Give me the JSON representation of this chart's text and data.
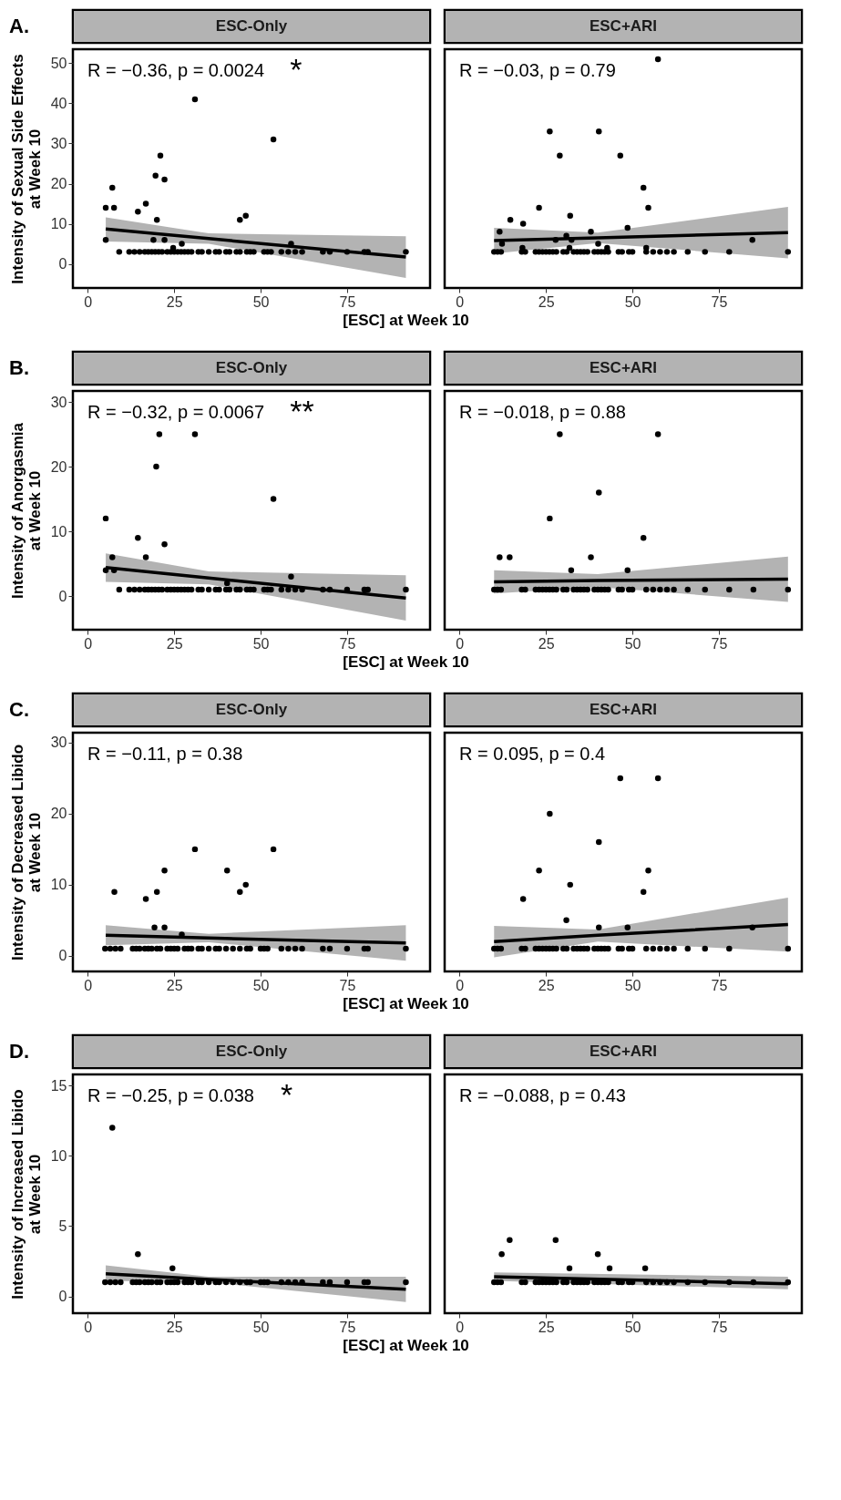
{
  "chart_data": [
    {
      "type": "scatter",
      "title": "ESC-Only",
      "xlabel": "[ESC] at Week 10",
      "ylabel": "Intensity of Sexual Side Effects\nat Week 10",
      "xlim": [
        -4.3,
        99
      ],
      "xticks": [
        0,
        25,
        50,
        75
      ],
      "ylim": [
        -6,
        53.5
      ],
      "yticks": [
        0,
        10,
        20,
        30,
        40,
        50
      ],
      "grid": false,
      "marker": "circle",
      "annotations": [
        "A.",
        "R = −0.36, p = 0.0024",
        "*"
      ],
      "series": [
        {
          "type": "scatter",
          "color": "#000000",
          "x": [
            5.2,
            5.2,
            7.1,
            7.6,
            9.1,
            14.5,
            16.8,
            20,
            19.6,
            21,
            22.2,
            19,
            22.2,
            31,
            27.2,
            44,
            45.7,
            53.7,
            58.8,
            24.7,
            12,
            13.5,
            15,
            16.5,
            17.5,
            18.5,
            19.5,
            20.5,
            21.5,
            23,
            24,
            25,
            26,
            27,
            28,
            29,
            30,
            32,
            33,
            35,
            37,
            38,
            40,
            41,
            43,
            44,
            46,
            47,
            48,
            51,
            52,
            53,
            56,
            58,
            60,
            62,
            68,
            70,
            75,
            80,
            81,
            92
          ],
          "values": [
            14,
            6,
            19,
            14,
            3,
            13,
            15,
            11,
            22,
            27,
            21,
            6,
            6,
            41,
            5,
            11,
            12,
            31,
            5,
            4,
            3,
            3,
            3,
            3,
            3,
            3,
            3,
            3,
            3,
            3,
            3,
            3,
            3,
            3,
            3,
            3,
            3,
            3,
            3,
            3,
            3,
            3,
            3,
            3,
            3,
            3,
            3,
            3,
            3,
            3,
            3,
            3,
            3,
            3,
            3,
            3,
            3,
            3,
            3,
            3,
            3,
            3
          ]
        },
        {
          "type": "line",
          "marker": "none",
          "color": "#000000",
          "x": [
            5.2,
            35,
            92
          ],
          "values": [
            8.7,
            6.3,
            1.7
          ],
          "lower": [
            5.6,
            5.0,
            -3.5
          ],
          "upper": [
            11.6,
            7.6,
            6.9
          ]
        }
      ]
    },
    {
      "type": "scatter",
      "title": "ESC+ARI",
      "xlim": [
        -4.3,
        99
      ],
      "xticks": [
        0,
        25,
        50,
        75
      ],
      "ylim": [
        -6,
        53.5
      ],
      "yticks": [
        0,
        10,
        20,
        30,
        40,
        50
      ],
      "grid": false,
      "marker": "circle",
      "tick_labels": "x",
      "annotations": [
        "R = −0.03, p = 0.79"
      ],
      "series": [
        {
          "type": "scatter",
          "color": "#000000",
          "x": [
            57.4,
            26.1,
            40.3,
            29,
            46.5,
            53.2,
            54.6,
            23,
            32,
            14.7,
            18.4,
            11.6,
            38,
            48.6,
            30.9,
            27.8,
            32.4,
            54,
            84.7,
            12.3,
            40.1,
            18.2,
            42.7,
            31.8,
            10,
            11,
            12,
            18,
            19,
            22,
            23,
            24,
            25,
            26,
            27,
            28,
            30,
            31,
            33,
            34,
            35,
            36,
            37,
            39,
            40,
            41,
            42,
            43,
            46,
            47,
            49,
            50,
            54,
            56,
            58,
            60,
            62,
            66,
            71,
            78,
            95
          ],
          "values": [
            51,
            33,
            33,
            27,
            27,
            19,
            14,
            14,
            12,
            11,
            10,
            8,
            8,
            9,
            7,
            6,
            6,
            4,
            6,
            5,
            5,
            4,
            4,
            4,
            3,
            3,
            3,
            3,
            3,
            3,
            3,
            3,
            3,
            3,
            3,
            3,
            3,
            3,
            3,
            3,
            3,
            3,
            3,
            3,
            3,
            3,
            3,
            3,
            3,
            3,
            3,
            3,
            3,
            3,
            3,
            3,
            3,
            3,
            3,
            3,
            3
          ]
        },
        {
          "type": "line",
          "marker": "none",
          "color": "#000000",
          "x": [
            10,
            40,
            95
          ],
          "values": [
            5.8,
            6.5,
            7.8
          ],
          "lower": [
            2.6,
            5.2,
            1.4
          ],
          "upper": [
            9.0,
            7.8,
            14.2
          ]
        }
      ]
    },
    {
      "type": "scatter",
      "title": "ESC-Only",
      "xlabel": "[ESC] at Week 10",
      "ylabel": "Intensity of Anorgasmia\nat Week 10",
      "xlim": [
        -4.3,
        99
      ],
      "xticks": [
        0,
        25,
        50,
        75
      ],
      "ylim": [
        -5.2,
        31.7
      ],
      "yticks": [
        0,
        10,
        20,
        30
      ],
      "grid": false,
      "marker": "circle",
      "annotations": [
        "B.",
        "R = −0.32, p = 0.0067",
        "**"
      ],
      "series": [
        {
          "type": "scatter",
          "color": "#000000",
          "x": [
            5.2,
            5.2,
            7.1,
            7.6,
            9.1,
            14.5,
            16.8,
            19.8,
            20.7,
            31,
            22.2,
            53.7,
            58.8,
            40.3,
            12,
            13.5,
            15,
            16.5,
            17.5,
            18.5,
            19.5,
            20.5,
            21.5,
            23,
            24,
            25,
            26,
            27,
            28,
            29,
            30,
            32,
            33,
            35,
            37,
            38,
            40,
            41,
            43,
            44,
            46,
            47,
            48,
            51,
            52,
            53,
            56,
            58,
            60,
            62,
            68,
            70,
            75,
            80,
            81,
            92
          ],
          "values": [
            12,
            4,
            6,
            4,
            1,
            9,
            6,
            20,
            25,
            25,
            8,
            15,
            3,
            2,
            1,
            1,
            1,
            1,
            1,
            1,
            1,
            1,
            1,
            1,
            1,
            1,
            1,
            1,
            1,
            1,
            1,
            1,
            1,
            1,
            1,
            1,
            1,
            1,
            1,
            1,
            1,
            1,
            1,
            1,
            1,
            1,
            1,
            1,
            1,
            1,
            1,
            1,
            1,
            1,
            1,
            1
          ]
        },
        {
          "type": "line",
          "marker": "none",
          "color": "#000000",
          "x": [
            5.2,
            35,
            92
          ],
          "values": [
            4.4,
            2.8,
            -0.3
          ],
          "lower": [
            2.2,
            1.8,
            -3.8
          ],
          "upper": [
            6.6,
            3.8,
            3.2
          ]
        }
      ]
    },
    {
      "type": "scatter",
      "title": "ESC+ARI",
      "xlim": [
        -4.3,
        99
      ],
      "xticks": [
        0,
        25,
        50,
        75
      ],
      "ylim": [
        -5.2,
        31.7
      ],
      "yticks": [
        0,
        10,
        20,
        30
      ],
      "grid": false,
      "marker": "circle",
      "tick_labels": "x",
      "annotations": [
        "R = −0.018, p = 0.88"
      ],
      "series": [
        {
          "type": "scatter",
          "color": "#000000",
          "x": [
            29,
            57.4,
            40.3,
            26.1,
            53.2,
            11.6,
            14.5,
            38,
            32.3,
            48.6,
            10,
            11,
            12,
            18,
            19,
            22,
            23,
            24,
            25,
            26,
            27,
            28,
            30,
            31,
            33,
            34,
            35,
            36,
            37,
            39,
            40,
            41,
            42,
            43,
            46,
            47,
            49,
            50,
            54,
            56,
            58,
            60,
            62,
            66,
            71,
            78,
            85,
            95
          ],
          "values": [
            25,
            25,
            16,
            12,
            9,
            6,
            6,
            6,
            4,
            4,
            1,
            1,
            1,
            1,
            1,
            1,
            1,
            1,
            1,
            1,
            1,
            1,
            1,
            1,
            1,
            1,
            1,
            1,
            1,
            1,
            1,
            1,
            1,
            1,
            1,
            1,
            1,
            1,
            1,
            1,
            1,
            1,
            1,
            1,
            1,
            1,
            1,
            1
          ]
        },
        {
          "type": "line",
          "marker": "none",
          "color": "#000000",
          "x": [
            10,
            40,
            95
          ],
          "values": [
            2.2,
            2.4,
            2.6
          ],
          "lower": [
            0.4,
            1.4,
            -0.9
          ],
          "upper": [
            4.0,
            3.4,
            6.1
          ]
        }
      ]
    },
    {
      "type": "scatter",
      "title": "ESC-Only",
      "xlabel": "[ESC] at Week 10",
      "ylabel": "Intensity of Decreased Libido\nat Week 10",
      "xlim": [
        -4.3,
        99
      ],
      "xticks": [
        0,
        25,
        50,
        75
      ],
      "ylim": [
        -2.2,
        31.4
      ],
      "yticks": [
        0,
        10,
        20,
        30
      ],
      "grid": false,
      "marker": "circle",
      "annotations": [
        "C.",
        "R = −0.11, p = 0.38"
      ],
      "series": [
        {
          "type": "scatter",
          "color": "#000000",
          "x": [
            7.7,
            16.8,
            20,
            19.3,
            22.2,
            22.2,
            27.2,
            31,
            40.3,
            44,
            45.7,
            53.7,
            5,
            6.5,
            8,
            9.5,
            13,
            14,
            15,
            16.5,
            17.5,
            18.5,
            20,
            21,
            23,
            24,
            25,
            26,
            28,
            29,
            30,
            32,
            33,
            35,
            37,
            38,
            40,
            42,
            44,
            46,
            47,
            50,
            51,
            52,
            56,
            58,
            60,
            62,
            68,
            70,
            75,
            80,
            81,
            92
          ],
          "values": [
            9,
            8,
            9,
            4,
            4,
            12,
            3,
            15,
            12,
            9,
            10,
            15,
            1,
            1,
            1,
            1,
            1,
            1,
            1,
            1,
            1,
            1,
            1,
            1,
            1,
            1,
            1,
            1,
            1,
            1,
            1,
            1,
            1,
            1,
            1,
            1,
            1,
            1,
            1,
            1,
            1,
            1,
            1,
            1,
            1,
            1,
            1,
            1,
            1,
            1,
            1,
            1,
            1,
            1
          ]
        },
        {
          "type": "line",
          "marker": "none",
          "color": "#000000",
          "x": [
            5.2,
            35,
            92
          ],
          "values": [
            2.9,
            2.5,
            1.8
          ],
          "lower": [
            1.5,
            1.9,
            -0.7
          ],
          "upper": [
            4.3,
            3.1,
            4.3
          ]
        }
      ]
    },
    {
      "type": "scatter",
      "title": "ESC+ARI",
      "xlim": [
        -4.3,
        99
      ],
      "xticks": [
        0,
        25,
        50,
        75
      ],
      "ylim": [
        -2.2,
        31.4
      ],
      "yticks": [
        0,
        10,
        20,
        30
      ],
      "grid": false,
      "marker": "circle",
      "tick_labels": "x",
      "annotations": [
        "R = 0.095, p = 0.4"
      ],
      "series": [
        {
          "type": "scatter",
          "color": "#000000",
          "x": [
            46.5,
            57.4,
            26.1,
            40.3,
            23,
            54.6,
            32,
            53.2,
            18.4,
            30.9,
            40.3,
            48.6,
            84.7,
            10,
            11,
            12,
            18,
            19,
            22,
            23,
            24,
            25,
            26,
            27,
            28,
            30,
            31,
            33,
            34,
            35,
            36,
            37,
            39,
            40,
            41,
            42,
            43,
            46,
            47,
            49,
            50,
            54,
            56,
            58,
            60,
            62,
            66,
            71,
            78,
            95
          ],
          "values": [
            25,
            25,
            20,
            16,
            12,
            12,
            10,
            9,
            8,
            5,
            4,
            4,
            4,
            1,
            1,
            1,
            1,
            1,
            1,
            1,
            1,
            1,
            1,
            1,
            1,
            1,
            1,
            1,
            1,
            1,
            1,
            1,
            1,
            1,
            1,
            1,
            1,
            1,
            1,
            1,
            1,
            1,
            1,
            1,
            1,
            1,
            1,
            1,
            1,
            1
          ]
        },
        {
          "type": "line",
          "marker": "none",
          "color": "#000000",
          "x": [
            10,
            40,
            95
          ],
          "values": [
            2.0,
            2.9,
            4.4
          ],
          "lower": [
            -0.2,
            2.0,
            0.6
          ],
          "upper": [
            4.2,
            3.7,
            8.2
          ]
        }
      ]
    },
    {
      "type": "scatter",
      "title": "ESC-Only",
      "xlabel": "[ESC] at Week 10",
      "ylabel": "Intensity of Increased Libido\nat Week 10",
      "xlim": [
        -4.3,
        99
      ],
      "xticks": [
        0,
        25,
        50,
        75
      ],
      "ylim": [
        -1.2,
        15.8
      ],
      "yticks": [
        0,
        5,
        10,
        15
      ],
      "grid": false,
      "marker": "circle",
      "annotations": [
        "D.",
        "R = −0.25, p = 0.038",
        "*"
      ],
      "series": [
        {
          "type": "scatter",
          "color": "#000000",
          "x": [
            7.1,
            14.5,
            24.5,
            5,
            6.5,
            8,
            9.5,
            13,
            14,
            15,
            16.5,
            17.5,
            18.5,
            20,
            21,
            23,
            24,
            25,
            26,
            28,
            29,
            30,
            32,
            33,
            35,
            37,
            38,
            40,
            42,
            44,
            46,
            47,
            50,
            51,
            52,
            56,
            58,
            60,
            62,
            68,
            70,
            75,
            80,
            81,
            92
          ],
          "values": [
            12,
            3,
            2,
            1,
            1,
            1,
            1,
            1,
            1,
            1,
            1,
            1,
            1,
            1,
            1,
            1,
            1,
            1,
            1,
            1,
            1,
            1,
            1,
            1,
            1,
            1,
            1,
            1,
            1,
            1,
            1,
            1,
            1,
            1,
            1,
            1,
            1,
            1,
            1,
            1,
            1,
            1,
            1,
            1,
            1
          ]
        },
        {
          "type": "line",
          "marker": "none",
          "color": "#000000",
          "x": [
            5.2,
            35,
            92
          ],
          "values": [
            1.6,
            1.2,
            0.5
          ],
          "lower": [
            1.1,
            1.0,
            -0.4
          ],
          "upper": [
            2.2,
            1.4,
            1.4
          ]
        }
      ]
    },
    {
      "type": "scatter",
      "title": "ESC+ARI",
      "xlim": [
        -4.3,
        99
      ],
      "xticks": [
        0,
        25,
        50,
        75
      ],
      "ylim": [
        -1.2,
        15.8
      ],
      "yticks": [
        0,
        5,
        10,
        15
      ],
      "grid": false,
      "marker": "circle",
      "tick_labels": "x",
      "annotations": [
        "R = −0.088, p = 0.43"
      ],
      "series": [
        {
          "type": "scatter",
          "color": "#000000",
          "x": [
            12.2,
            14.5,
            27.8,
            31.8,
            40,
            43.4,
            53.7,
            10,
            11,
            12,
            18,
            19,
            22,
            23,
            24,
            25,
            26,
            27,
            28,
            30,
            31,
            33,
            34,
            35,
            36,
            37,
            39,
            40,
            41,
            42,
            43,
            46,
            47,
            49,
            50,
            54,
            56,
            58,
            60,
            62,
            66,
            71,
            78,
            85,
            95
          ],
          "values": [
            3,
            4,
            4,
            2,
            3,
            2,
            2,
            1,
            1,
            1,
            1,
            1,
            1,
            1,
            1,
            1,
            1,
            1,
            1,
            1,
            1,
            1,
            1,
            1,
            1,
            1,
            1,
            1,
            1,
            1,
            1,
            1,
            1,
            1,
            1,
            1,
            1,
            1,
            1,
            1,
            1,
            1,
            1,
            1,
            1
          ]
        },
        {
          "type": "line",
          "marker": "none",
          "color": "#000000",
          "x": [
            10,
            95
          ],
          "values": [
            1.4,
            0.9
          ],
          "lower": [
            1.1,
            0.5
          ],
          "upper": [
            1.7,
            1.4
          ]
        }
      ]
    }
  ]
}
